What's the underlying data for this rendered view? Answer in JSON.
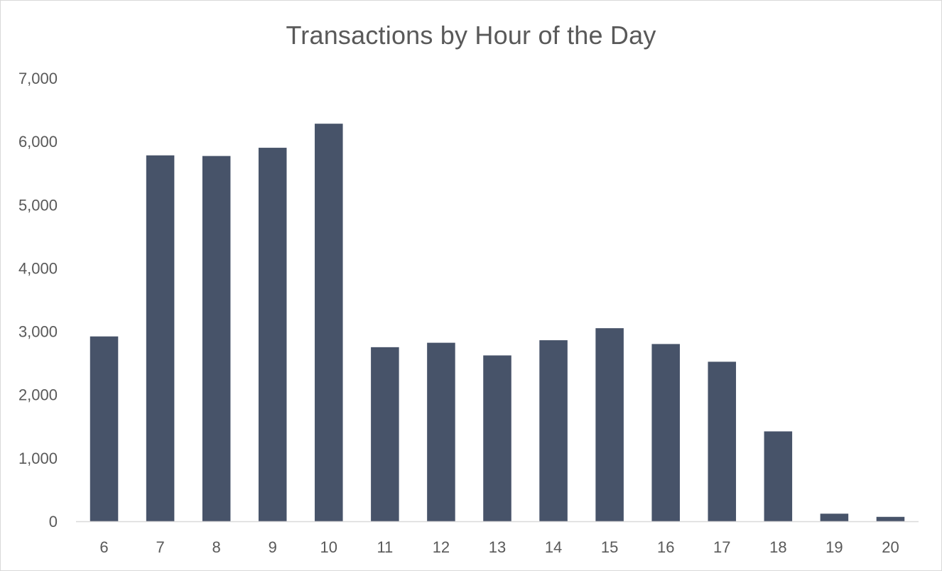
{
  "chart_data": {
    "type": "bar",
    "title": "Transactions by Hour of the Day",
    "xlabel": "",
    "ylabel": "",
    "categories": [
      "6",
      "7",
      "8",
      "9",
      "10",
      "11",
      "12",
      "13",
      "14",
      "15",
      "16",
      "17",
      "18",
      "19",
      "20"
    ],
    "values": [
      2920,
      5780,
      5770,
      5900,
      6280,
      2750,
      2820,
      2620,
      2860,
      3050,
      2800,
      2520,
      1420,
      120,
      70
    ],
    "ylim": [
      0,
      7000
    ],
    "yticks": [
      0,
      1000,
      2000,
      3000,
      4000,
      5000,
      6000,
      7000
    ],
    "ytick_labels": [
      "0",
      "1,000",
      "2,000",
      "3,000",
      "4,000",
      "5,000",
      "6,000",
      "7,000"
    ],
    "grid": false,
    "legend": "none",
    "bar_color": "#475369",
    "axis_color": "#d9d9d9",
    "text_color": "#595959"
  }
}
